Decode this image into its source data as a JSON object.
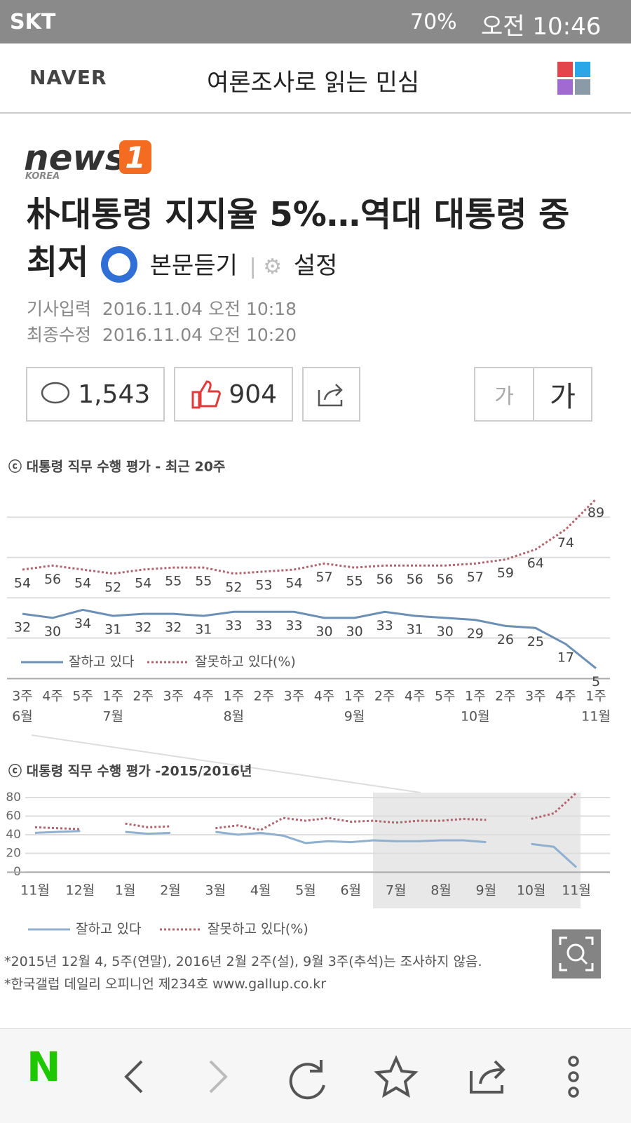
{
  "status_bar": {
    "carrier": "SKT",
    "battery": "70%",
    "time": "오전 10:46"
  },
  "header": {
    "brand": "NAVER",
    "title": "여론조사로 읽는 민심"
  },
  "article": {
    "logo_word": "news",
    "logo_num": "1",
    "logo_sub": "KOREA",
    "headline": "朴대통령 지지율 5%…역대 대통령 중 최저",
    "listen": "본문듣기",
    "settings": "설정",
    "published_label": "기사입력",
    "published": "2016.11.04 오전 10:18",
    "modified_label": "최종수정",
    "modified": "2016.11.04 오전 10:20",
    "comments": "1,543",
    "likes": "904",
    "font_small": "가",
    "font_large": "가",
    "footnotes": [
      "*2015년 12월 4, 5주(연말), 2016년 2월 2주(설), 9월 3주(추석)는 조사하지 않음.",
      "*한국갤럽 데일리 오피니언 제234호 www.gallup.co.kr"
    ]
  },
  "nav": {
    "logo": "N"
  },
  "chart_data": [
    {
      "type": "line",
      "title": "ⓒ 대통령 직무 수행 평가 - 최근 20주",
      "categories": [
        "3주",
        "4주",
        "5주",
        "1주",
        "2주",
        "3주",
        "4주",
        "1주",
        "2주",
        "3주",
        "4주",
        "1주",
        "2주",
        "4주",
        "5주",
        "1주",
        "2주",
        "3주",
        "4주",
        "1주"
      ],
      "month_labels": [
        "6월",
        null,
        null,
        "7월",
        null,
        null,
        null,
        "8월",
        null,
        null,
        null,
        "9월",
        null,
        null,
        null,
        "10월",
        null,
        null,
        null,
        "11월"
      ],
      "ylim": [
        0,
        100
      ],
      "gridlines": [
        20,
        40,
        60,
        80
      ],
      "data_labels": true,
      "series": [
        {
          "name": "잘하고 있다",
          "color": "#6b8fb5",
          "style": "solid",
          "values": [
            32,
            30,
            34,
            31,
            32,
            32,
            31,
            33,
            33,
            33,
            30,
            30,
            33,
            31,
            30,
            29,
            26,
            25,
            17,
            5
          ]
        },
        {
          "name": "잘못하고 있다(%)",
          "color": "#b0646e",
          "style": "dotted",
          "values": [
            54,
            56,
            54,
            52,
            54,
            55,
            55,
            52,
            53,
            54,
            57,
            55,
            56,
            56,
            56,
            57,
            59,
            64,
            74,
            89
          ]
        }
      ]
    },
    {
      "type": "line",
      "title": "ⓒ 대통령 직무 수행 평가 -2015/2016년",
      "categories": [
        "11월",
        null,
        "12월",
        null,
        "1월",
        null,
        "2월",
        null,
        "3월",
        null,
        "4월",
        null,
        "5월",
        null,
        "6월",
        null,
        "7월",
        null,
        "8월",
        null,
        "9월",
        null,
        "10월",
        null,
        "11월"
      ],
      "ylim": [
        0,
        80
      ],
      "yticks": [
        0,
        20,
        40,
        60,
        80
      ],
      "grid": true,
      "data_labels": false,
      "series": [
        {
          "name": "잘하고 있다",
          "color": "#8fb0cf",
          "style": "solid",
          "values": [
            42,
            43,
            44,
            null,
            43,
            41,
            42,
            null,
            43,
            40,
            42,
            39,
            31,
            33,
            32,
            34,
            33,
            33,
            34,
            34,
            32,
            null,
            30,
            27,
            5
          ]
        },
        {
          "name": "잘못하고 있다(%)",
          "color": "#b0646e",
          "style": "dotted",
          "values": [
            48,
            47,
            46,
            null,
            52,
            48,
            49,
            null,
            47,
            50,
            45,
            58,
            55,
            58,
            54,
            55,
            53,
            55,
            55,
            57,
            56,
            null,
            57,
            63,
            85
          ]
        }
      ]
    }
  ]
}
